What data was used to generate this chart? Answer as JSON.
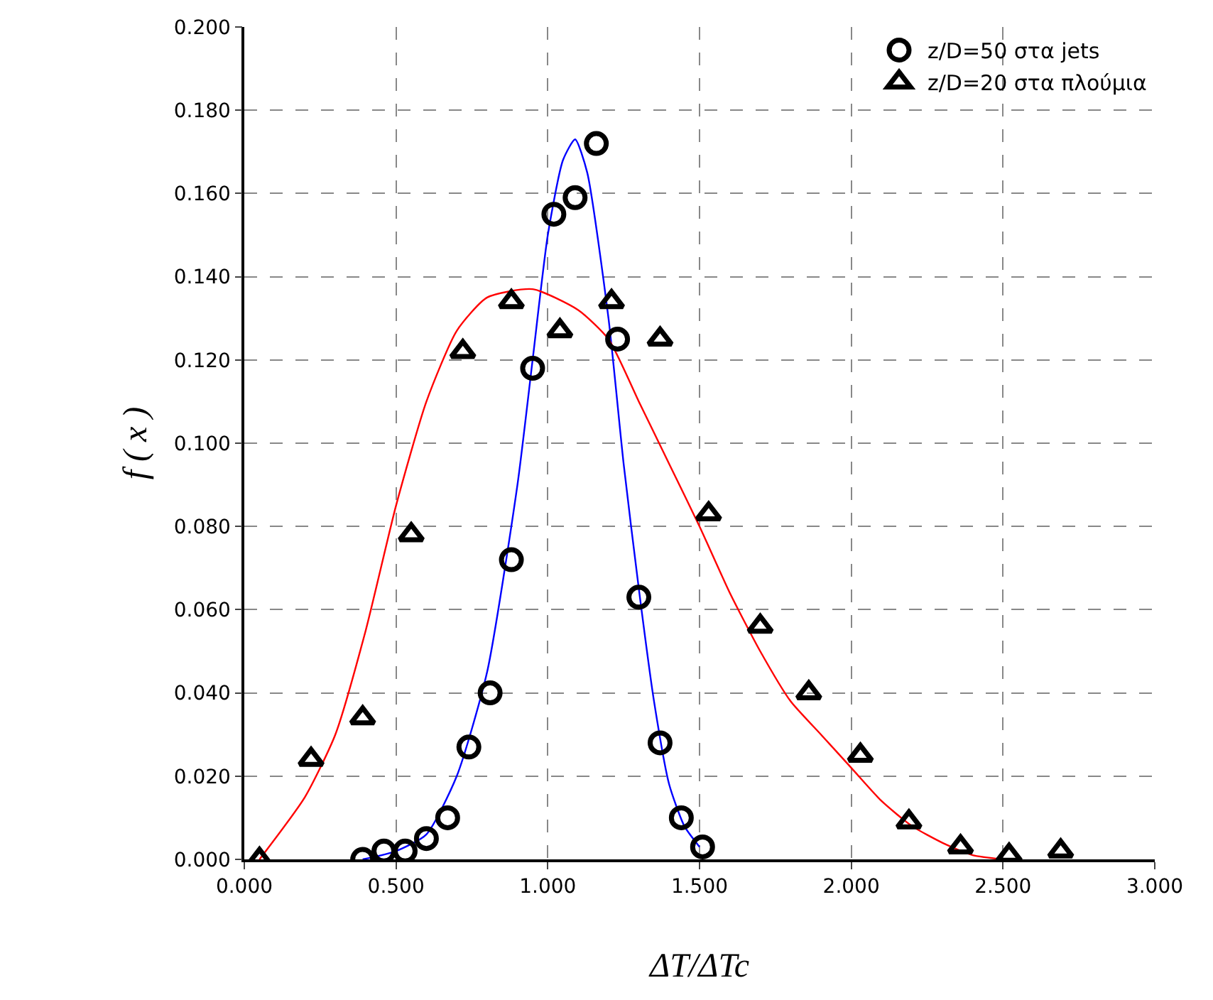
{
  "chart_data": {
    "type": "scatter",
    "xlabel": "ΔT/ΔTc",
    "ylabel": "f ( x )",
    "xlim": [
      0,
      3
    ],
    "xticks": [
      {
        "value": 0,
        "label": "0.000"
      },
      {
        "value": 0.5,
        "label": "0.500"
      },
      {
        "value": 1,
        "label": "1.000"
      },
      {
        "value": 1.5,
        "label": "1.500"
      },
      {
        "value": 2,
        "label": "2.000"
      },
      {
        "value": 2.5,
        "label": "2.500"
      },
      {
        "value": 3,
        "label": "3.000"
      }
    ],
    "ylim": [
      0,
      0.2
    ],
    "yticks": [
      {
        "value": 0,
        "label": "0.000"
      },
      {
        "value": 0.02,
        "label": "0.020"
      },
      {
        "value": 0.04,
        "label": "0.040"
      },
      {
        "value": 0.06,
        "label": "0.060"
      },
      {
        "value": 0.08,
        "label": "0.080"
      },
      {
        "value": 0.1,
        "label": "0.100"
      },
      {
        "value": 0.12,
        "label": "0.120"
      },
      {
        "value": 0.14,
        "label": "0.140"
      },
      {
        "value": 0.16,
        "label": "0.160"
      },
      {
        "value": 0.18,
        "label": "0.180"
      },
      {
        "value": 0.2,
        "label": "0.200"
      }
    ],
    "grid": true,
    "legend": "top right",
    "series": [
      {
        "type": "line",
        "color": "#0000ff",
        "marker": "none",
        "x": [
          0.39,
          0.5,
          0.6,
          0.7,
          0.8,
          0.9,
          0.95,
          1.0,
          1.05,
          1.09,
          1.13,
          1.2,
          1.25,
          1.3,
          1.35,
          1.4,
          1.45,
          1.5
        ],
        "values": [
          0.0,
          0.002,
          0.006,
          0.02,
          0.045,
          0.09,
          0.12,
          0.15,
          0.168,
          0.173,
          0.165,
          0.13,
          0.095,
          0.065,
          0.038,
          0.018,
          0.008,
          0.003
        ]
      },
      {
        "type": "line",
        "color": "#ff0000",
        "marker": "none",
        "x": [
          0.05,
          0.2,
          0.3,
          0.4,
          0.5,
          0.6,
          0.7,
          0.8,
          0.95,
          1.1,
          1.2,
          1.3,
          1.4,
          1.5,
          1.6,
          1.7,
          1.8,
          1.9,
          2.0,
          2.1,
          2.2,
          2.3,
          2.4,
          2.5
        ],
        "values": [
          0.0,
          0.015,
          0.03,
          0.055,
          0.085,
          0.11,
          0.127,
          0.135,
          0.137,
          0.132,
          0.125,
          0.11,
          0.095,
          0.08,
          0.064,
          0.05,
          0.038,
          0.03,
          0.022,
          0.014,
          0.008,
          0.004,
          0.001,
          0.0
        ]
      },
      {
        "name": "z/D=50 στα jets",
        "color": "#000000",
        "marker": "circle",
        "x": [
          0.39,
          0.46,
          0.53,
          0.6,
          0.67,
          0.74,
          0.81,
          0.88,
          0.95,
          1.02,
          1.09,
          1.16,
          1.23,
          1.3,
          1.37,
          1.44,
          1.51
        ],
        "values": [
          0.0,
          0.002,
          0.002,
          0.005,
          0.01,
          0.027,
          0.04,
          0.072,
          0.118,
          0.155,
          0.159,
          0.172,
          0.125,
          0.063,
          0.028,
          0.01,
          0.003
        ]
      },
      {
        "name": "z/D=20 στα πλούμια",
        "color": "#000000",
        "marker": "triangle",
        "x": [
          0.05,
          0.22,
          0.39,
          0.55,
          0.72,
          0.88,
          1.04,
          1.21,
          1.37,
          1.53,
          1.7,
          1.86,
          2.03,
          2.19,
          2.36,
          2.52,
          2.69
        ],
        "values": [
          0.0,
          0.024,
          0.034,
          0.078,
          0.122,
          0.134,
          0.127,
          0.134,
          0.125,
          0.083,
          0.056,
          0.04,
          0.025,
          0.009,
          0.003,
          0.001,
          0.002
        ]
      }
    ]
  }
}
